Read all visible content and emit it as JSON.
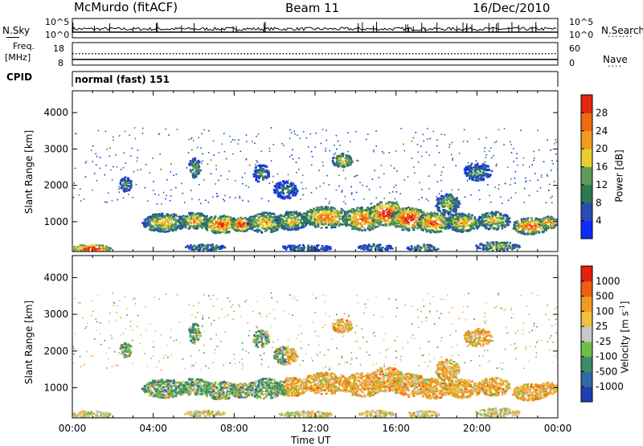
{
  "header": {
    "station": "McMurdo (fitACF)",
    "beam": "Beam 11",
    "date": "16/Dec/2010"
  },
  "noise_panel": {
    "left_label": "N.Sky",
    "left_ticks": [
      "10^5",
      "10^0"
    ],
    "right_label": "N.Search",
    "right_ticks": [
      "10^5",
      "10^0"
    ]
  },
  "freq_panel": {
    "left_label_1": "Freq.",
    "left_label_2": "[MHz]",
    "left_ticks": [
      "18",
      "8"
    ],
    "right_label": "Nave",
    "right_ticks": [
      "60",
      "0"
    ]
  },
  "cpid": {
    "label": "CPID",
    "value": "normal (fast) 151"
  },
  "x_axis": {
    "title": "Time UT",
    "ticks": [
      "00:00",
      "04:00",
      "08:00",
      "12:00",
      "16:00",
      "20:00",
      "00:00"
    ]
  },
  "chart_data": [
    {
      "type": "heatmap",
      "title": "",
      "xlabel": "Time UT",
      "ylabel": "Slant Range [km]",
      "xlim": [
        0,
        24
      ],
      "ylim": [
        180,
        4600
      ],
      "yticks": [
        1000,
        2000,
        3000,
        4000
      ],
      "colorbar": {
        "label": "Power [dB]",
        "ticks": [
          "4",
          "8",
          "12",
          "16",
          "20",
          "24",
          "28"
        ],
        "colors": [
          "#0a2cff",
          "#2a4bb5",
          "#2e7a50",
          "#5f9a5a",
          "#e8cf30",
          "#f29a1e",
          "#f06a10",
          "#e52810"
        ]
      }
    },
    {
      "type": "heatmap",
      "title": "",
      "xlabel": "Time UT",
      "ylabel": "Slant Range [km]",
      "xlim": [
        0,
        24
      ],
      "ylim": [
        180,
        4600
      ],
      "yticks": [
        1000,
        2000,
        3000,
        4000
      ],
      "colorbar": {
        "label": "Velocity [m s^-1]",
        "ticks": [
          "1000",
          "500",
          "100",
          "25",
          "-25",
          "-100",
          "-500",
          "-1000"
        ],
        "colors": [
          "#1f3fb0",
          "#2f6aa0",
          "#3c8a66",
          "#6fbf45",
          "#c8c8c8",
          "#f0c040",
          "#f29a1e",
          "#f06010",
          "#e52010"
        ]
      }
    }
  ]
}
